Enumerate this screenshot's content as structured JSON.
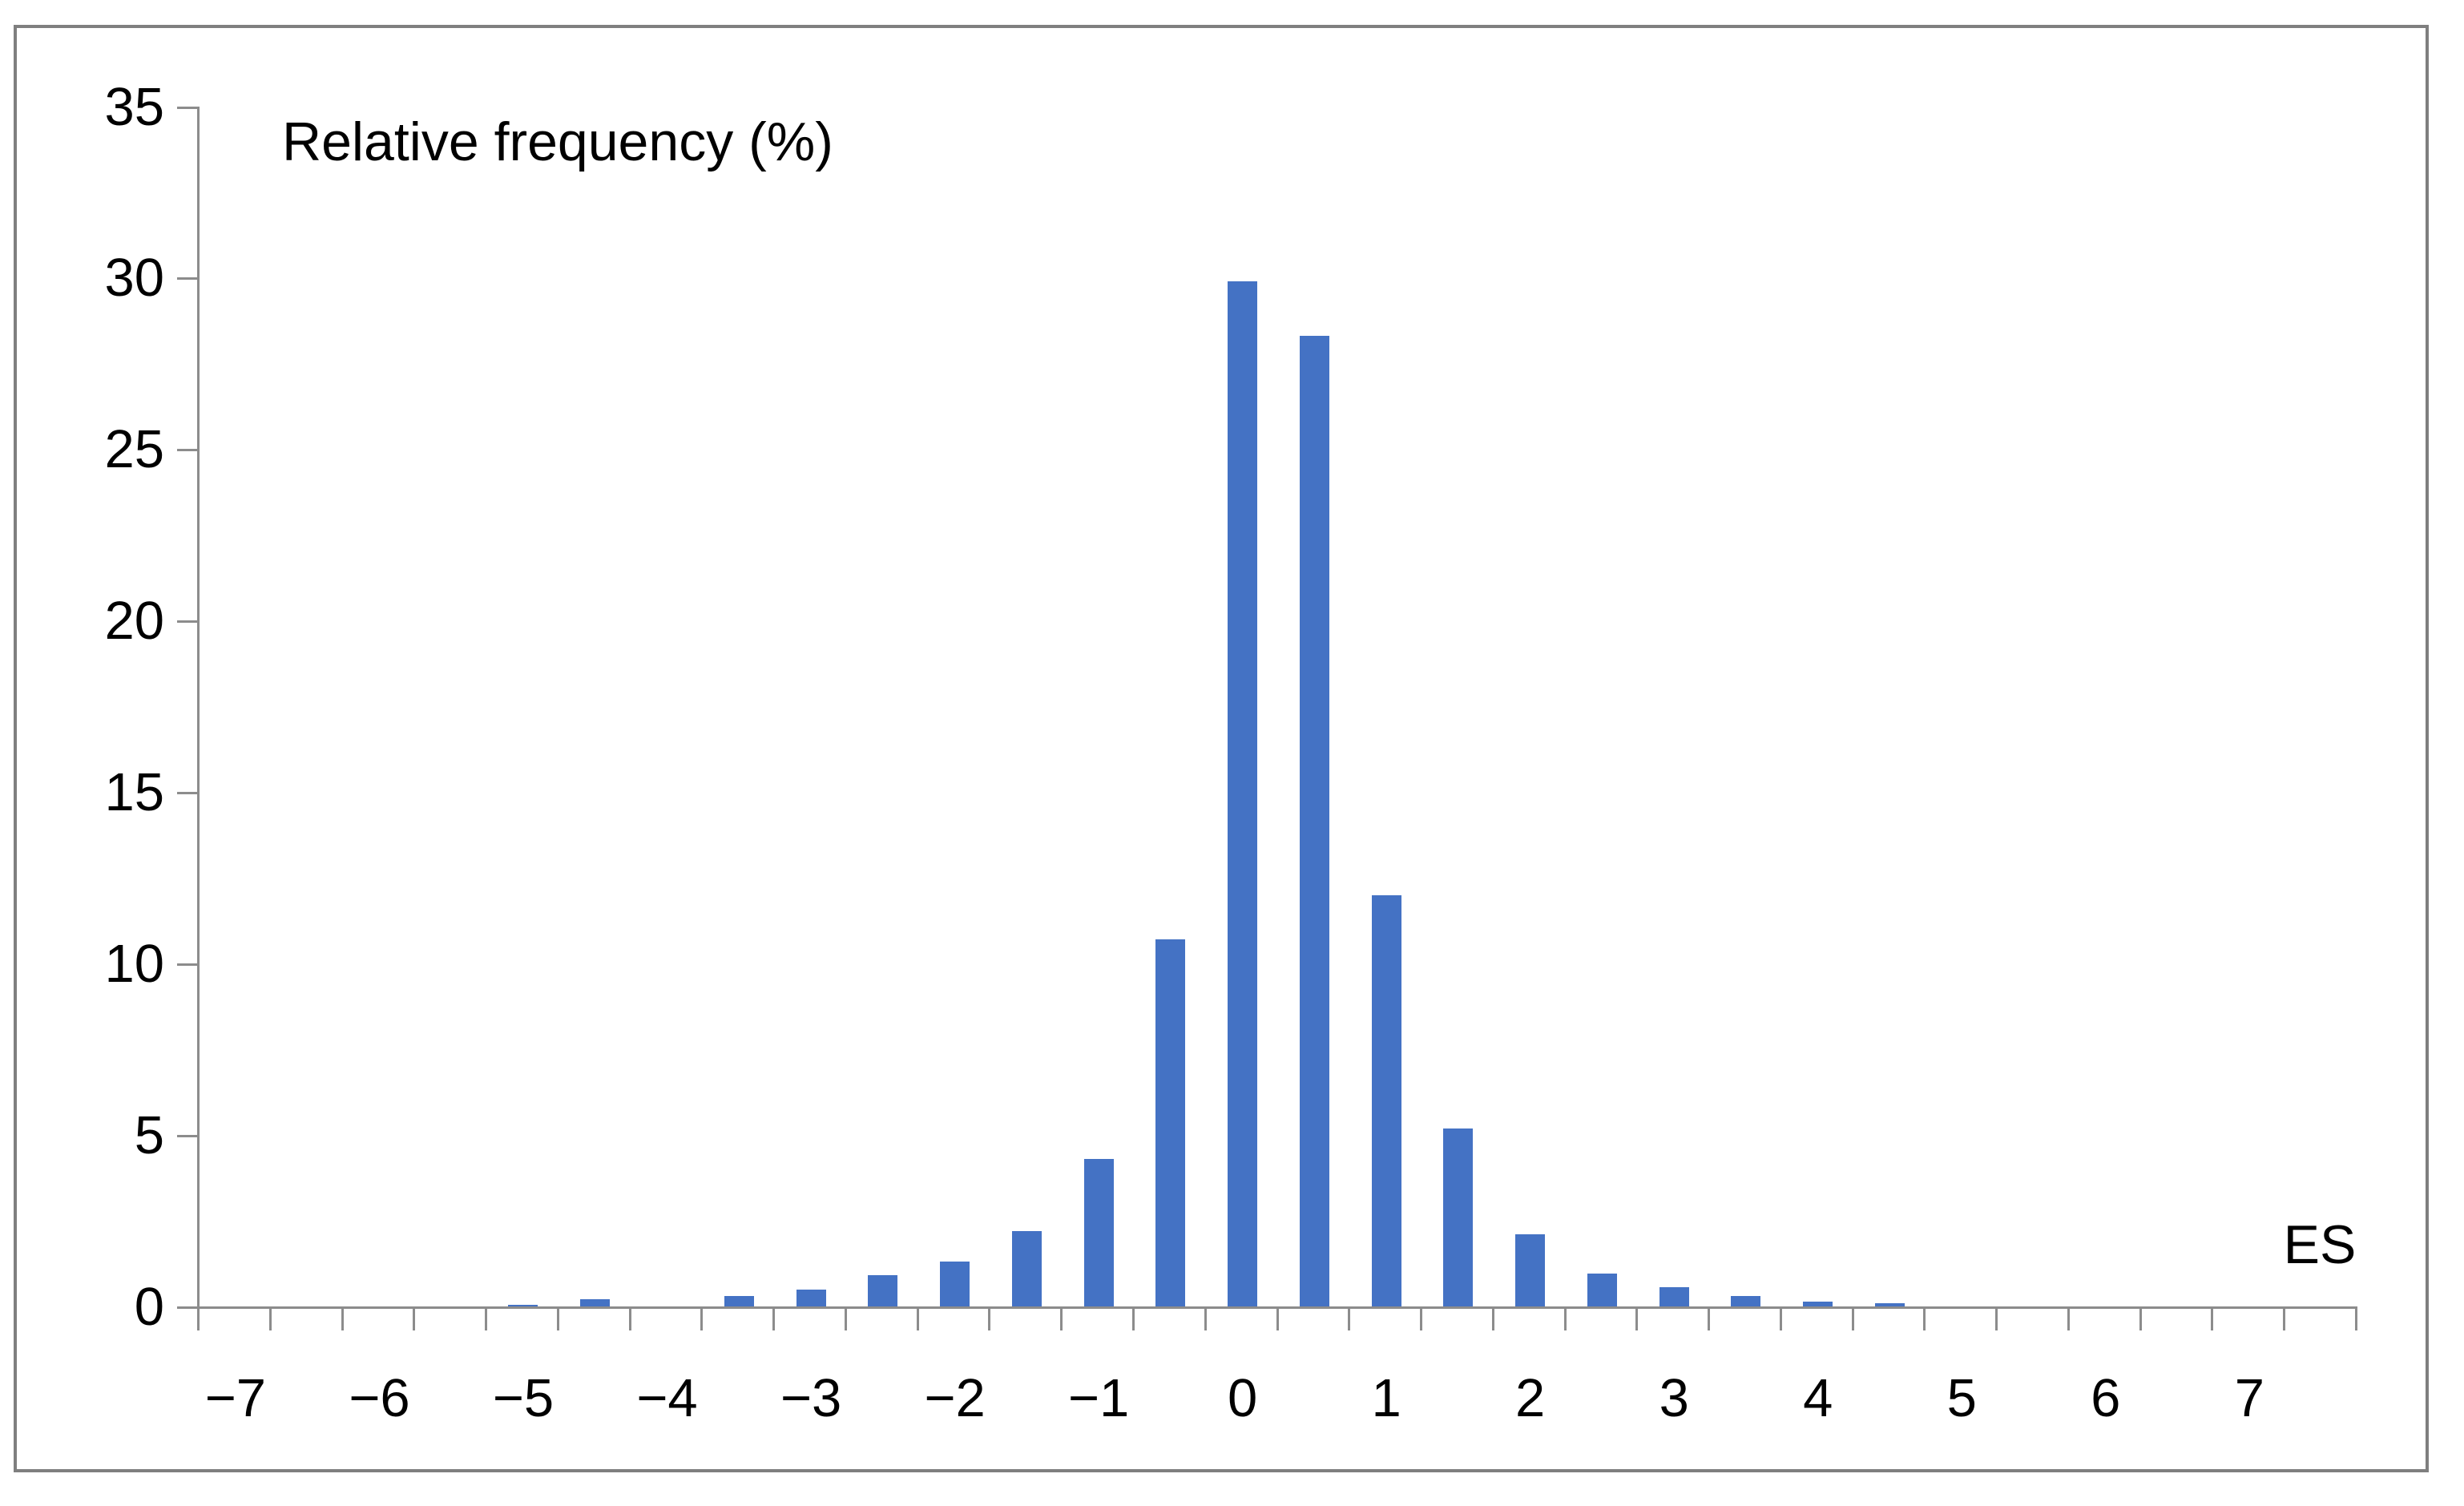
{
  "figure": {
    "title": "Relative frequency (%)",
    "x_axis_label": "ES",
    "colors": {
      "bar": "#4472C4",
      "axis": "#8C8C8C",
      "border": "#7F7F7F",
      "text": "#000000"
    }
  },
  "chart_data": {
    "type": "bar",
    "title": "Relative frequency (%)",
    "xlabel": "ES",
    "ylabel": "Relative frequency (%)",
    "bin_width": 0.5,
    "x": [
      -7,
      -6.5,
      -6,
      -5.5,
      -5,
      -4.5,
      -4,
      -3.5,
      -3,
      -2.5,
      -2,
      -1.5,
      -1,
      -0.5,
      0,
      0.5,
      1,
      1.5,
      2,
      2.5,
      3,
      3.5,
      4,
      4.5,
      5,
      5.5,
      6,
      6.5,
      7,
      7.5
    ],
    "values": [
      0,
      0,
      0,
      0,
      0.05,
      0.2,
      0,
      0.3,
      0.5,
      0.9,
      1.3,
      2.2,
      4.3,
      10.7,
      29.9,
      28.3,
      12.0,
      5.2,
      2.1,
      0.95,
      0.55,
      0.3,
      0.15,
      0.1,
      0,
      0,
      0,
      0,
      0,
      0
    ],
    "x_tick_values": [
      -7,
      -6,
      -5,
      -4,
      -3,
      -2,
      -1,
      0,
      1,
      2,
      3,
      4,
      5,
      6,
      7
    ],
    "x_tick_labels": [
      "−7",
      "−6",
      "−5",
      "−4",
      "−3",
      "−2",
      "−1",
      "0",
      "1",
      "2",
      "3",
      "4",
      "5",
      "6",
      "7"
    ],
    "y_ticks": [
      0,
      5,
      10,
      15,
      20,
      25,
      30,
      35
    ],
    "y_tick_labels": [
      "0",
      "5",
      "10",
      "15",
      "20",
      "25",
      "30",
      "35"
    ],
    "ylim": [
      0,
      35
    ],
    "xlim": [
      -7.25,
      7.75
    ],
    "grid": false,
    "legend": null
  }
}
